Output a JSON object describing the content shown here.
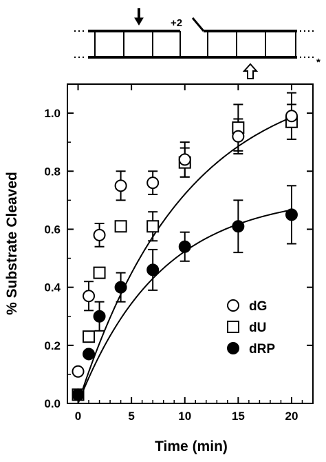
{
  "diagram": {
    "position_label": "+2",
    "end_mark": "*"
  },
  "chart_data": {
    "type": "scatter",
    "xlabel": "Time (min)",
    "ylabel": "% Substrate Cleaved",
    "xlim": [
      -1,
      22
    ],
    "ylim": [
      0,
      1.1
    ],
    "xticks": [
      0,
      5,
      10,
      15,
      20
    ],
    "yticks": [
      0.0,
      0.2,
      0.4,
      0.6,
      0.8,
      1.0
    ],
    "xtick_labels": [
      "0",
      "5",
      "10",
      "15",
      "20"
    ],
    "ytick_labels": [
      "0.0",
      "0.2",
      "0.4",
      "0.6",
      "0.8",
      "1.0"
    ],
    "legend_position": "bottom-right",
    "series": [
      {
        "name": "dG",
        "marker": "open-circle",
        "x": [
          0,
          1,
          2,
          4,
          7,
          10,
          15,
          20
        ],
        "y": [
          0.11,
          0.37,
          0.58,
          0.75,
          0.76,
          0.84,
          0.92,
          0.99
        ],
        "err": [
          0,
          0.05,
          0.04,
          0.05,
          0.04,
          0.06,
          0.06,
          0.08
        ],
        "fit": {
          "ymax": 1.14,
          "k": 0.1
        }
      },
      {
        "name": "dU",
        "marker": "open-square",
        "x": [
          0,
          1,
          2,
          4,
          7,
          10,
          15,
          20
        ],
        "y": [
          0.03,
          0.23,
          0.45,
          0.61,
          0.61,
          0.83,
          0.95,
          0.97
        ],
        "err": [
          0,
          0,
          0,
          0,
          0.05,
          0.05,
          0.08,
          0.06
        ],
        "fit": null
      },
      {
        "name": "dRP",
        "marker": "filled-circle",
        "x": [
          0,
          1,
          2,
          4,
          7,
          10,
          15,
          20
        ],
        "y": [
          0.03,
          0.17,
          0.3,
          0.4,
          0.46,
          0.54,
          0.61,
          0.65
        ],
        "err": [
          0,
          0,
          0.05,
          0.05,
          0.07,
          0.05,
          0.09,
          0.1
        ],
        "fit": {
          "ymax": 0.72,
          "k": 0.13
        }
      }
    ]
  }
}
